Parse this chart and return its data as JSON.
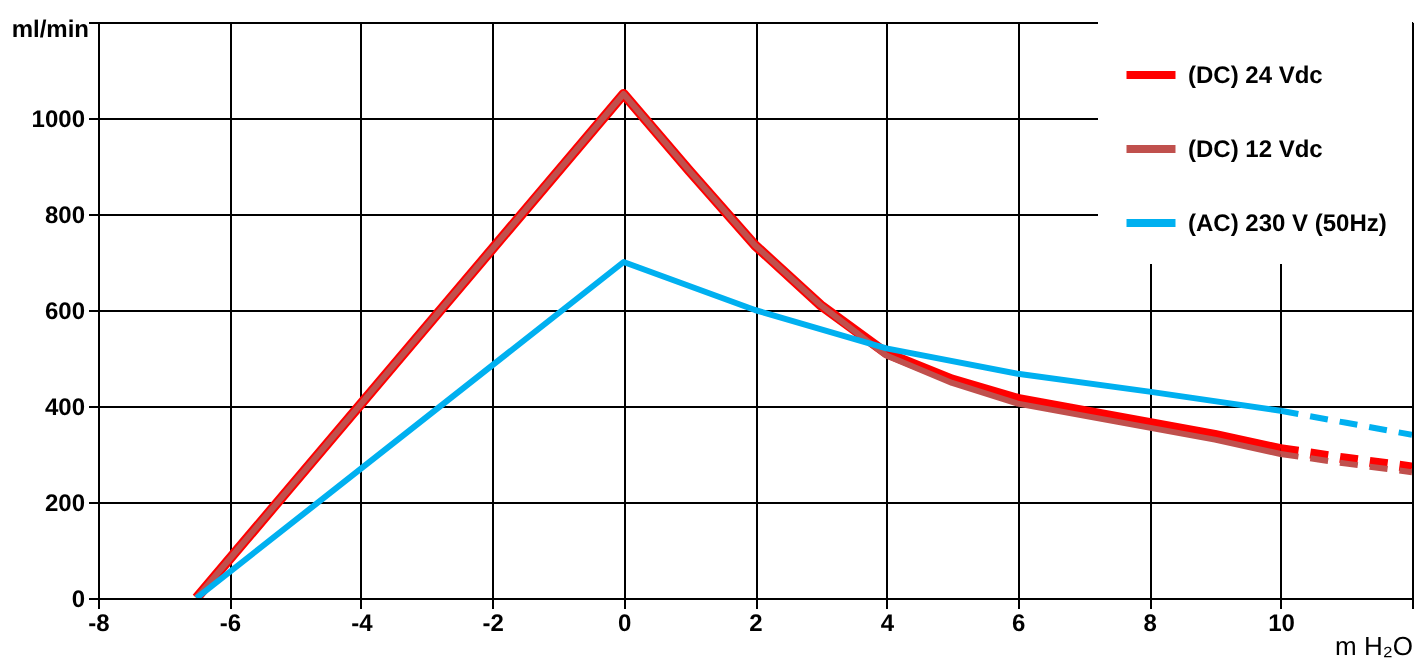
{
  "chart_data": {
    "type": "line",
    "xlabel": "m H₂O",
    "ylabel": "ml/min",
    "xlim": [
      -8,
      12
    ],
    "xticks": [
      -8,
      -6,
      -4,
      -2,
      0,
      2,
      4,
      6,
      8,
      10,
      {
        "value": 12,
        "label": null
      }
    ],
    "ylim": [
      0,
      1200
    ],
    "yticks": [
      0,
      200,
      400,
      600,
      800,
      1000,
      {
        "value": 1200,
        "label": null
      }
    ],
    "grid": true,
    "legend": "top right",
    "marker": "none",
    "series": [
      {
        "name": "(DC)  24 Vdc",
        "color": "#ff0000",
        "line_style": "solid",
        "x": [
          -6.5,
          0,
          1,
          2,
          3,
          4,
          5,
          6,
          7,
          8,
          9,
          10
        ],
        "values": [
          0,
          1050,
          890,
          735,
          610,
          510,
          455,
          415,
          390,
          365,
          340,
          310
        ]
      },
      {
        "color": "#ff0000",
        "line_style": "dashed",
        "x": [
          10,
          11,
          12
        ],
        "values": [
          310,
          290,
          272
        ]
      },
      {
        "name": "(DC)  12 Vdc",
        "color": "#c0504d",
        "line_style": "solid",
        "x": [
          -6.5,
          0,
          1,
          2,
          3,
          4,
          5,
          6,
          7,
          8,
          9,
          10
        ],
        "values": [
          0,
          1050,
          890,
          735,
          610,
          505,
          448,
          405,
          380,
          355,
          330,
          300
        ]
      },
      {
        "color": "#c0504d",
        "line_style": "dashed",
        "x": [
          10,
          11,
          12
        ],
        "values": [
          300,
          280,
          262
        ]
      },
      {
        "name": "(AC) 230 V (50Hz)",
        "color": "#00b0f0",
        "line_style": "solid",
        "x": [
          -6.5,
          0,
          2,
          4,
          6,
          8,
          10
        ],
        "values": [
          0,
          700,
          600,
          520,
          467,
          430,
          390
        ]
      },
      {
        "color": "#00b0f0",
        "line_style": "dashed",
        "x": [
          10,
          11,
          12
        ],
        "values": [
          390,
          365,
          340
        ]
      }
    ]
  }
}
